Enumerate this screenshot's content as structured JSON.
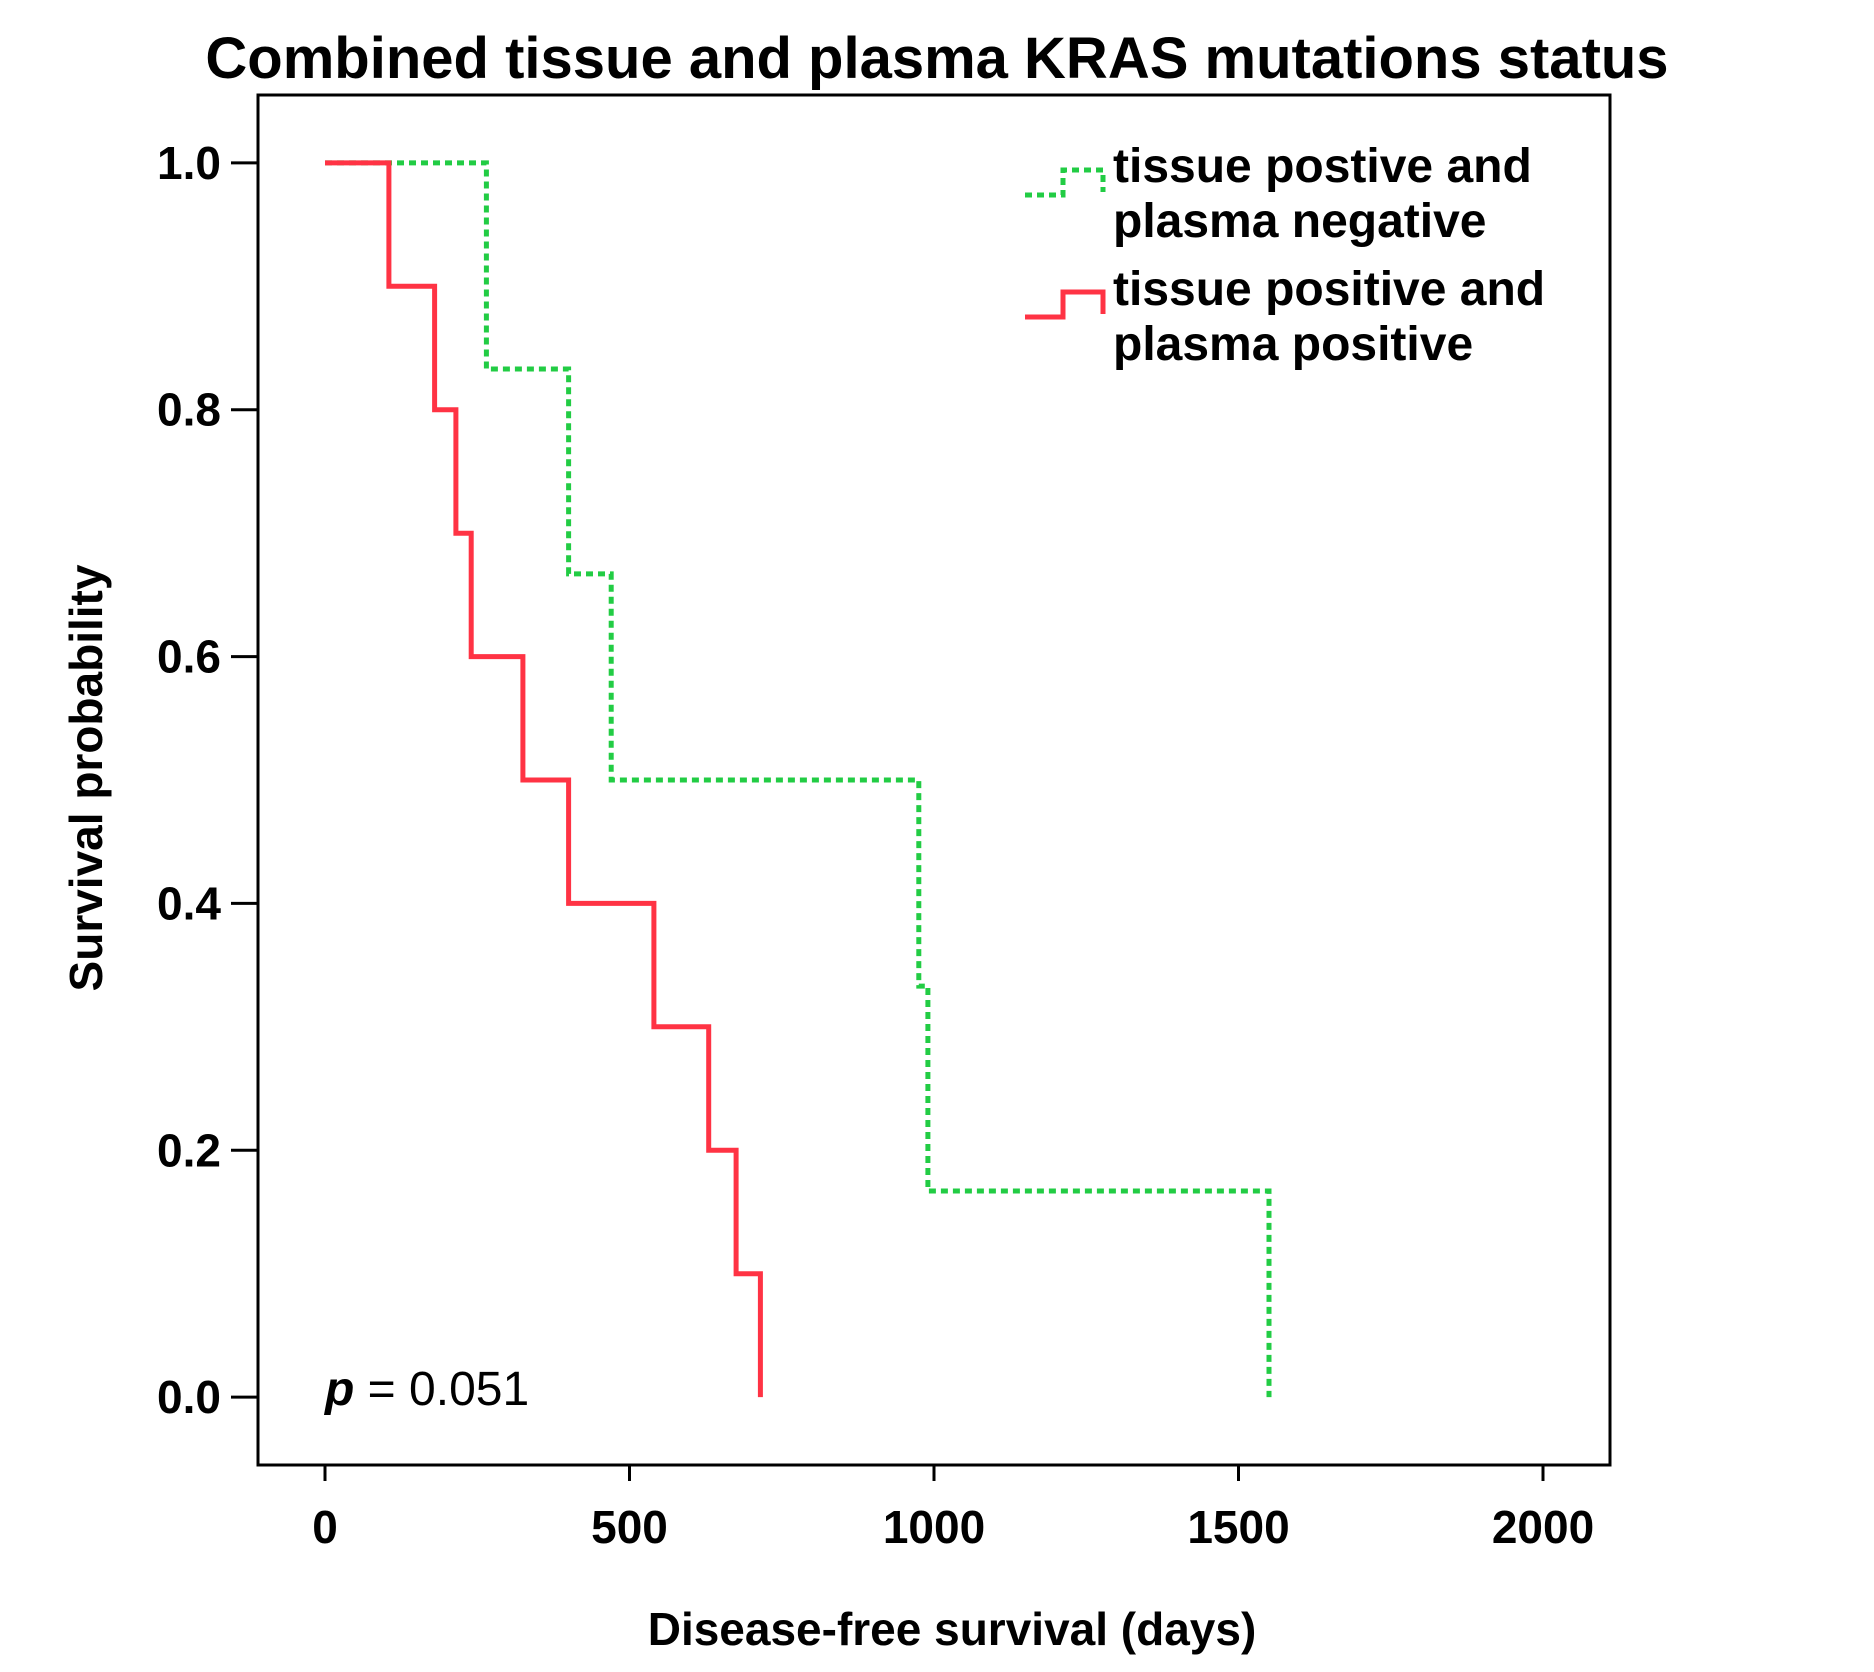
{
  "chart_data": {
    "type": "line",
    "subtype": "kaplan-meier-step",
    "title": "Combined tissue and plasma KRAS mutations status",
    "xlabel": "Disease-free survival (days)",
    "ylabel": "Survival probability",
    "xlim": [
      -110,
      2110
    ],
    "ylim": [
      -0.055,
      1.055
    ],
    "x_ticks": [
      0,
      500,
      1000,
      1500,
      2000
    ],
    "x_tick_labels": [
      "0",
      "500",
      "1000",
      "1500",
      "2000"
    ],
    "y_ticks": [
      0.0,
      0.2,
      0.4,
      0.6,
      0.8,
      1.0
    ],
    "y_tick_labels": [
      "0.0",
      "0.2",
      "0.4",
      "0.6",
      "0.8",
      "1.0"
    ],
    "grid": false,
    "legend_position": "top-right",
    "annotation": {
      "italic": "p",
      "rest": " = 0.051"
    },
    "series": [
      {
        "name": "tissue postive and plasma negative",
        "legend_lines": [
          "tissue postive and",
          "plasma negative"
        ],
        "color": "#22cc44",
        "style": "dotted",
        "x": [
          0,
          265,
          265,
          400,
          400,
          470,
          470,
          975,
          975,
          990,
          990,
          1550,
          1550
        ],
        "y": [
          1.0,
          1.0,
          0.833,
          0.833,
          0.667,
          0.667,
          0.5,
          0.5,
          0.333,
          0.333,
          0.167,
          0.167,
          0.0
        ]
      },
      {
        "name": "tissue positive and plasma positive",
        "legend_lines": [
          "tissue positive and",
          "plasma positive"
        ],
        "color": "#ff3344",
        "style": "solid",
        "x": [
          0,
          105,
          105,
          180,
          180,
          215,
          215,
          240,
          240,
          325,
          325,
          400,
          400,
          540,
          540,
          630,
          630,
          675,
          675,
          715,
          715
        ],
        "y": [
          1.0,
          1.0,
          0.9,
          0.9,
          0.8,
          0.8,
          0.7,
          0.7,
          0.6,
          0.6,
          0.5,
          0.5,
          0.4,
          0.4,
          0.3,
          0.3,
          0.2,
          0.2,
          0.1,
          0.1,
          0.0
        ]
      }
    ]
  }
}
